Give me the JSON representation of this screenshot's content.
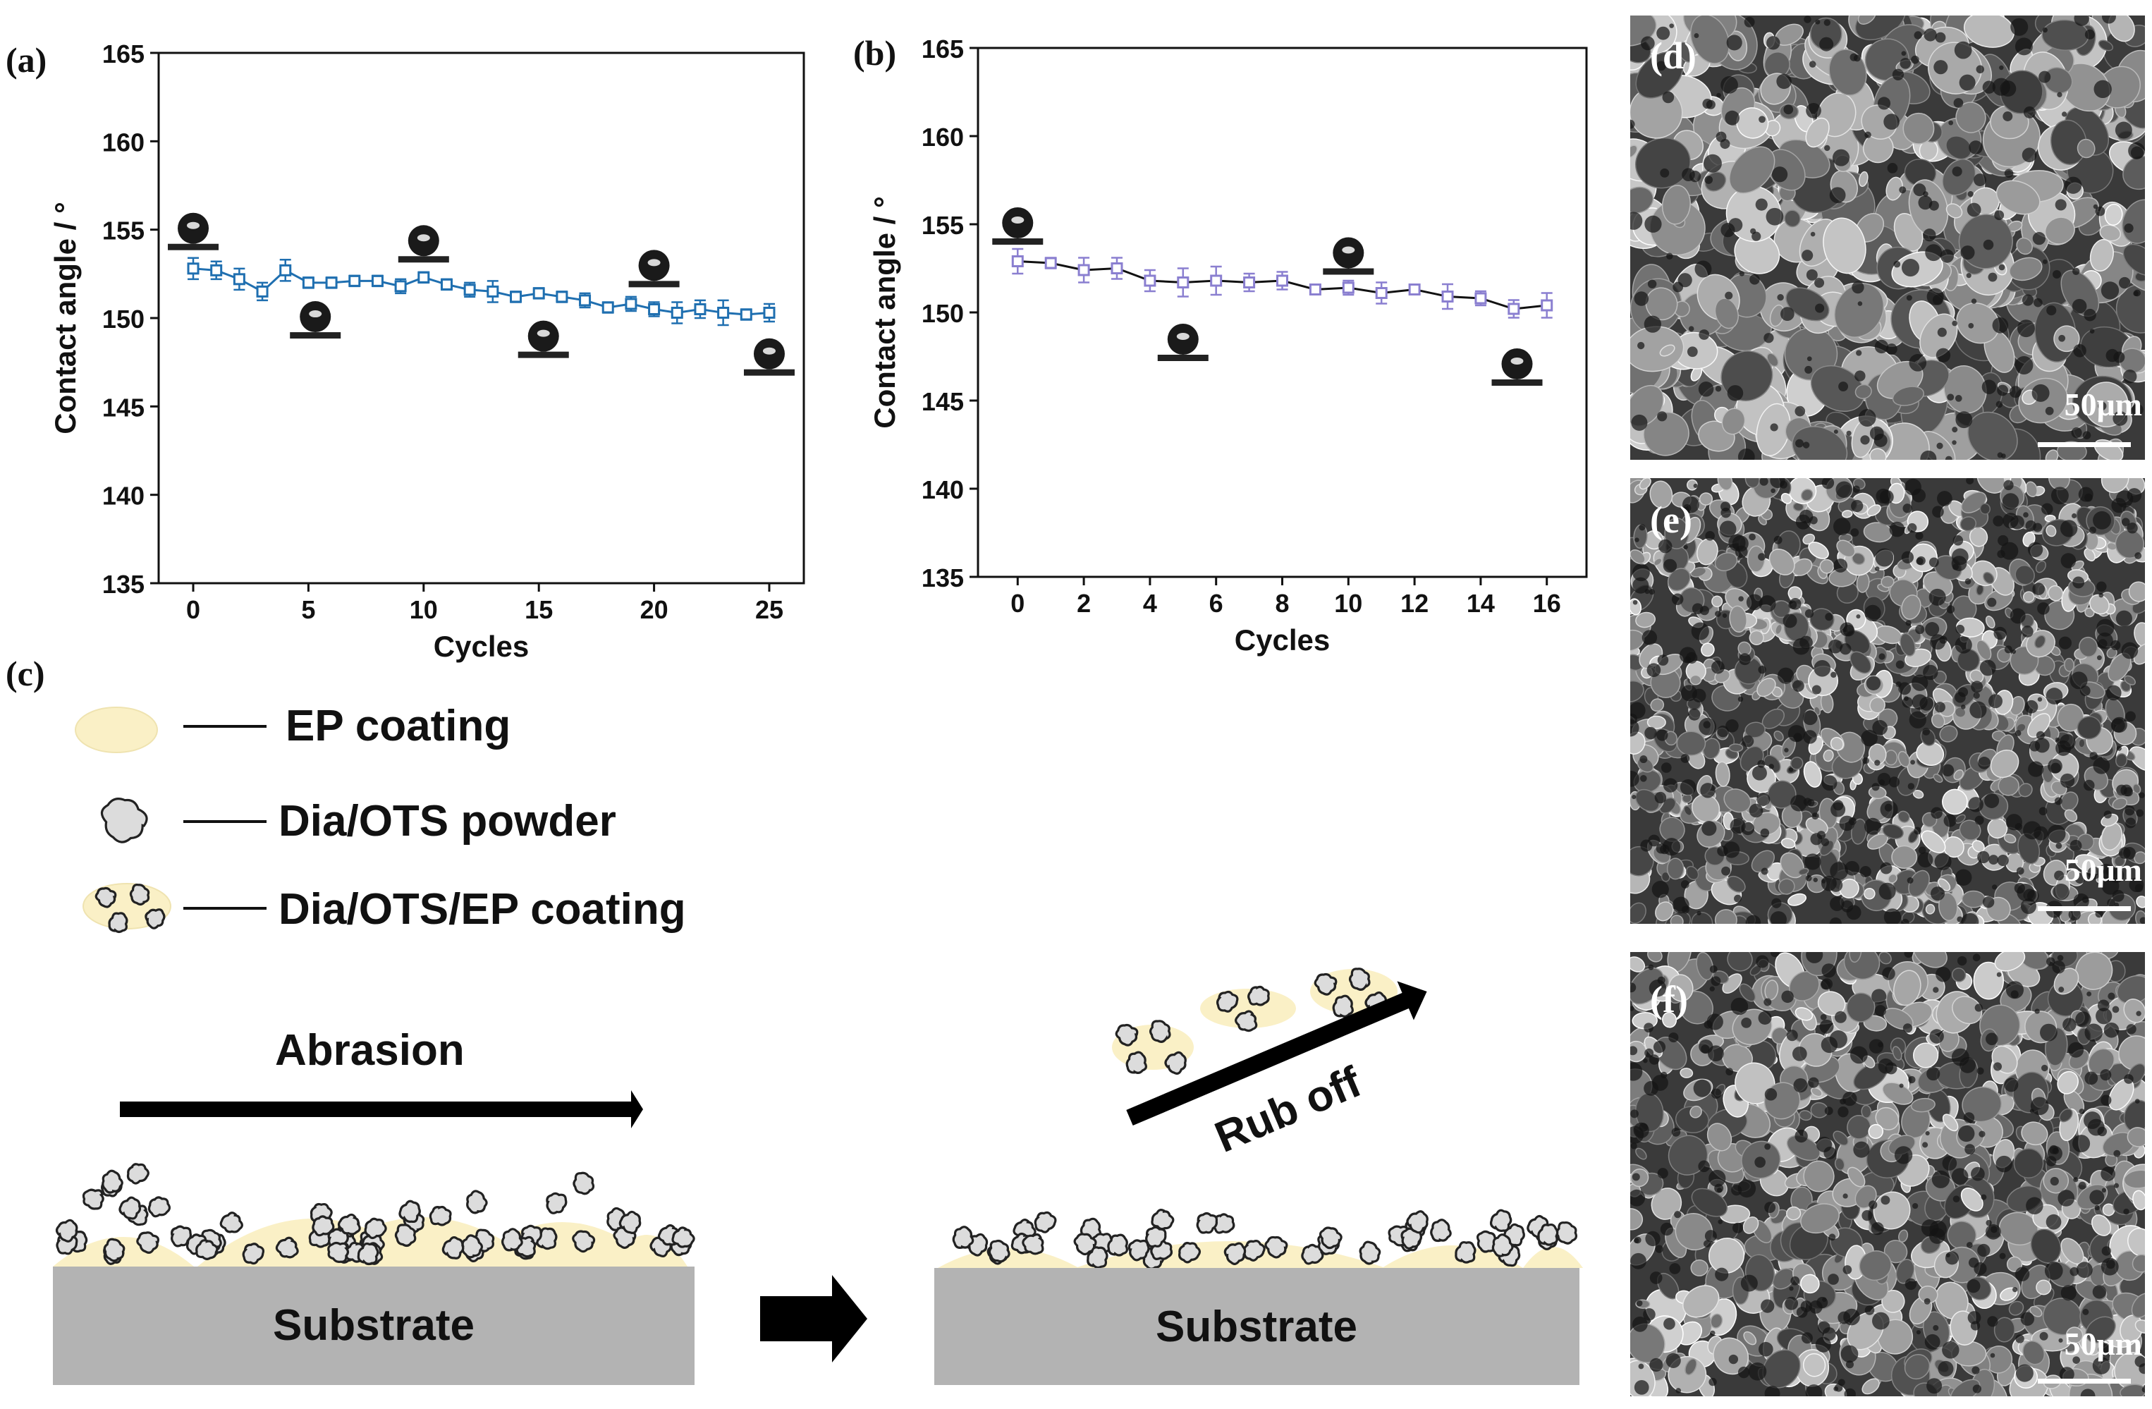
{
  "panel_labels": {
    "a": "(a)",
    "b": "(b)",
    "c": "(c)",
    "d": "(d)",
    "e": "(e)",
    "f": "(f)"
  },
  "chart_data": [
    {
      "type": "line",
      "panel": "(a)",
      "xlabel": "Cycles",
      "ylabel": "Contact angle / °",
      "xlim": [
        -1.5,
        26.5
      ],
      "ylim": [
        135,
        165
      ],
      "xticks": [
        0,
        5,
        10,
        15,
        20,
        25
      ],
      "yticks": [
        135,
        140,
        145,
        150,
        155,
        160,
        165
      ],
      "grid": false,
      "color": "#1f6fb0",
      "marker": "square",
      "x": [
        0,
        1,
        2,
        3,
        4,
        5,
        6,
        7,
        8,
        9,
        10,
        11,
        12,
        13,
        14,
        15,
        16,
        17,
        18,
        19,
        20,
        21,
        22,
        23,
        24,
        25
      ],
      "y": [
        152.8,
        152.7,
        152.2,
        151.5,
        152.7,
        152.0,
        152.0,
        152.1,
        152.1,
        151.8,
        152.3,
        151.9,
        151.6,
        151.5,
        151.2,
        151.4,
        151.2,
        151.0,
        150.6,
        150.8,
        150.5,
        150.3,
        150.5,
        150.3,
        150.2,
        150.3
      ],
      "err": [
        0.6,
        0.5,
        0.6,
        0.5,
        0.6,
        0.3,
        0.3,
        0.3,
        0.3,
        0.4,
        0.3,
        0.3,
        0.4,
        0.6,
        0.3,
        0.3,
        0.3,
        0.4,
        0.3,
        0.4,
        0.4,
        0.6,
        0.5,
        0.7,
        0.3,
        0.5
      ],
      "droplets": [
        {
          "x": 0,
          "angle": 154.2
        },
        {
          "x": 5.3,
          "angle": 149.2
        },
        {
          "x": 10,
          "angle": 153.5
        },
        {
          "x": 15.2,
          "angle": 148.1
        },
        {
          "x": 20,
          "angle": 152.1
        },
        {
          "x": 25,
          "angle": 147.1
        }
      ]
    },
    {
      "type": "line",
      "panel": "(b)",
      "xlabel": "Cycles",
      "ylabel": "Contact angle / °",
      "xlim": [
        -1.2,
        17.2
      ],
      "ylim": [
        135,
        165
      ],
      "xticks": [
        0,
        2,
        4,
        6,
        8,
        10,
        12,
        14,
        16
      ],
      "yticks": [
        135,
        140,
        145,
        150,
        155,
        160,
        165
      ],
      "grid": false,
      "color": "#8a7fd0",
      "line_color": "#111111",
      "marker": "square",
      "x": [
        0,
        1,
        2,
        3,
        4,
        5,
        6,
        7,
        8,
        9,
        10,
        11,
        12,
        13,
        14,
        15,
        16
      ],
      "y": [
        152.9,
        152.8,
        152.4,
        152.5,
        151.8,
        151.7,
        151.8,
        151.7,
        151.8,
        151.3,
        151.4,
        151.1,
        151.3,
        150.9,
        150.8,
        150.2,
        150.4
      ],
      "err": [
        0.7,
        0.3,
        0.7,
        0.6,
        0.6,
        0.8,
        0.8,
        0.5,
        0.5,
        0.2,
        0.4,
        0.6,
        0.2,
        0.7,
        0.4,
        0.5,
        0.7
      ],
      "droplets": [
        {
          "x": 0,
          "angle": 154.2
        },
        {
          "x": 5,
          "angle": 147.6
        },
        {
          "x": 10,
          "angle": 152.5
        },
        {
          "x": 15.1,
          "angle": 146.2
        }
      ]
    }
  ],
  "legend_c": [
    {
      "label": "EP coating",
      "symbol": "ep"
    },
    {
      "label": "Dia/OTS powder",
      "symbol": "powder"
    },
    {
      "label": "Dia/OTS/EP coating",
      "symbol": "composite"
    }
  ],
  "schematic": {
    "abrasion_label": "Abrasion",
    "rub_off_label": "Rub off",
    "substrate_left": "Substrate",
    "substrate_right": "Substrate"
  },
  "sem_images": [
    {
      "label": "(d)",
      "scale": "50μm",
      "density": "coarse"
    },
    {
      "label": "(e)",
      "scale": "50μm",
      "density": "fine"
    },
    {
      "label": "(f)",
      "scale": "50μm",
      "density": "medium"
    }
  ],
  "colors": {
    "ep": "#faf0c6",
    "particle": "#dcdcdc",
    "particle_stroke": "#222222",
    "substrate": "#b3b3b3"
  }
}
